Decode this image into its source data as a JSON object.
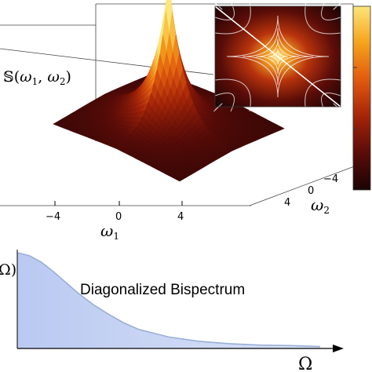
{
  "chart_data": [
    {
      "type": "surface",
      "zlabel": "𝕊(ω₁, ω₂)",
      "zlabel_parts": {
        "func": "𝕊(",
        "v1": "ω",
        "s1": "1",
        "sep": ", ",
        "v2": "ω",
        "s2": "2",
        "close": ")"
      },
      "xlabel": {
        "var": "ω",
        "sub": "1"
      },
      "ylabel": {
        "var": "ω",
        "sub": "2"
      },
      "x_ticks": [
        "−4",
        "0",
        "4"
      ],
      "y_ticks": [
        "4",
        "0",
        "−4"
      ],
      "xlim": [
        -7,
        7
      ],
      "ylim": [
        -7,
        7
      ],
      "peak": {
        "x": 0,
        "y": 0
      },
      "colormap": [
        "#1a0404",
        "#5a0c08",
        "#a42408",
        "#e05a10",
        "#f6a21c",
        "#fbe67a"
      ],
      "inset": {
        "type": "heatmap",
        "contours": true,
        "diagonal_line": true
      },
      "colorbar": {
        "orientation": "vertical",
        "position": "right"
      }
    },
    {
      "type": "area",
      "title": "Diagonalized Bispectrum",
      "ylabel_fragment": "Ω)",
      "xlabel": "Ω",
      "fill_color": "#b9c9f1",
      "line_color": "#9aaed8",
      "x": [
        0,
        0.04,
        0.08,
        0.12,
        0.16,
        0.2,
        0.25,
        0.3,
        0.35,
        0.4,
        0.5,
        0.6,
        0.7,
        0.8,
        0.9,
        1.0
      ],
      "values": [
        1.0,
        0.97,
        0.9,
        0.8,
        0.69,
        0.58,
        0.46,
        0.36,
        0.27,
        0.2,
        0.12,
        0.075,
        0.05,
        0.035,
        0.03,
        0.02
      ]
    }
  ]
}
